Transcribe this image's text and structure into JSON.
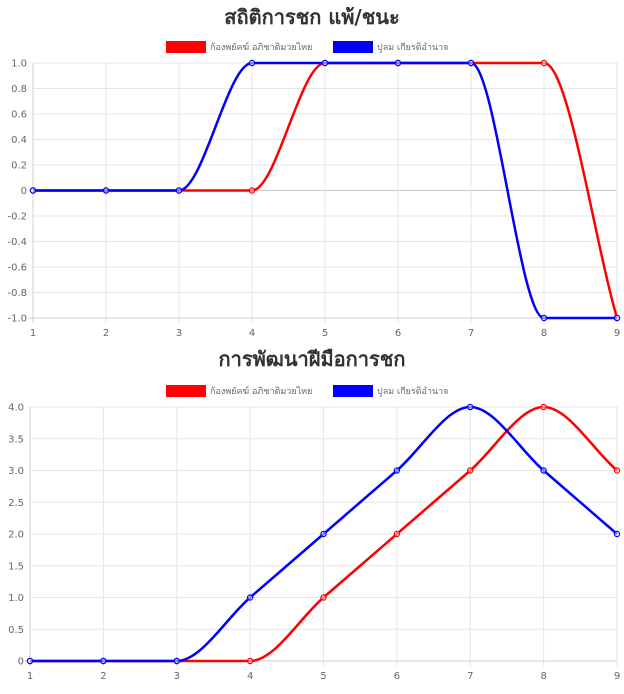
{
  "chart_data": [
    {
      "type": "line",
      "title": "สถิติการชก แพ้/ชนะ",
      "categories": [
        "1",
        "2",
        "3",
        "4",
        "5",
        "6",
        "7",
        "8",
        "9"
      ],
      "ylim": [
        -1.0,
        1.0
      ],
      "yticks": [
        "1.0",
        "0.8",
        "0.6",
        "0.4",
        "0.2",
        "0",
        "-0.2",
        "-0.4",
        "-0.6",
        "-0.8",
        "-1.0"
      ],
      "ytick_values": [
        1.0,
        0.8,
        0.6,
        0.4,
        0.2,
        0,
        -0.2,
        -0.4,
        -0.6,
        -0.8,
        -1.0
      ],
      "legend_position": "top-center",
      "grid": true,
      "series": [
        {
          "name": "ก้องพยัคฆ์ อภิชาติมวยไทย",
          "color": "#ff0000",
          "values": [
            0,
            0,
            0,
            0,
            1,
            1,
            1,
            1,
            -1
          ]
        },
        {
          "name": "ปูลม เกียรติอำนาจ",
          "color": "#0000ff",
          "values": [
            0,
            0,
            0,
            1,
            1,
            1,
            1,
            -1,
            -1
          ]
        }
      ]
    },
    {
      "type": "line",
      "title": "การพัฒนาฝีมือการชก",
      "categories": [
        "1",
        "2",
        "3",
        "4",
        "5",
        "6",
        "7",
        "8",
        "9"
      ],
      "ylim": [
        0,
        4.0
      ],
      "yticks": [
        "4.0",
        "3.5",
        "3.0",
        "2.5",
        "2.0",
        "1.5",
        "1.0",
        "0.5",
        "0"
      ],
      "ytick_values": [
        4.0,
        3.5,
        3.0,
        2.5,
        2.0,
        1.5,
        1.0,
        0.5,
        0
      ],
      "legend_position": "top-center",
      "grid": true,
      "series": [
        {
          "name": "ก้องพยัคฆ์ อภิชาติมวยไทย",
          "color": "#ff0000",
          "values": [
            0,
            0,
            0,
            0,
            1,
            2,
            3,
            4,
            3
          ]
        },
        {
          "name": "ปูลม เกียรติอำนาจ",
          "color": "#0000ff",
          "values": [
            0,
            0,
            0,
            1,
            2,
            3,
            4,
            3,
            2
          ]
        }
      ]
    }
  ]
}
